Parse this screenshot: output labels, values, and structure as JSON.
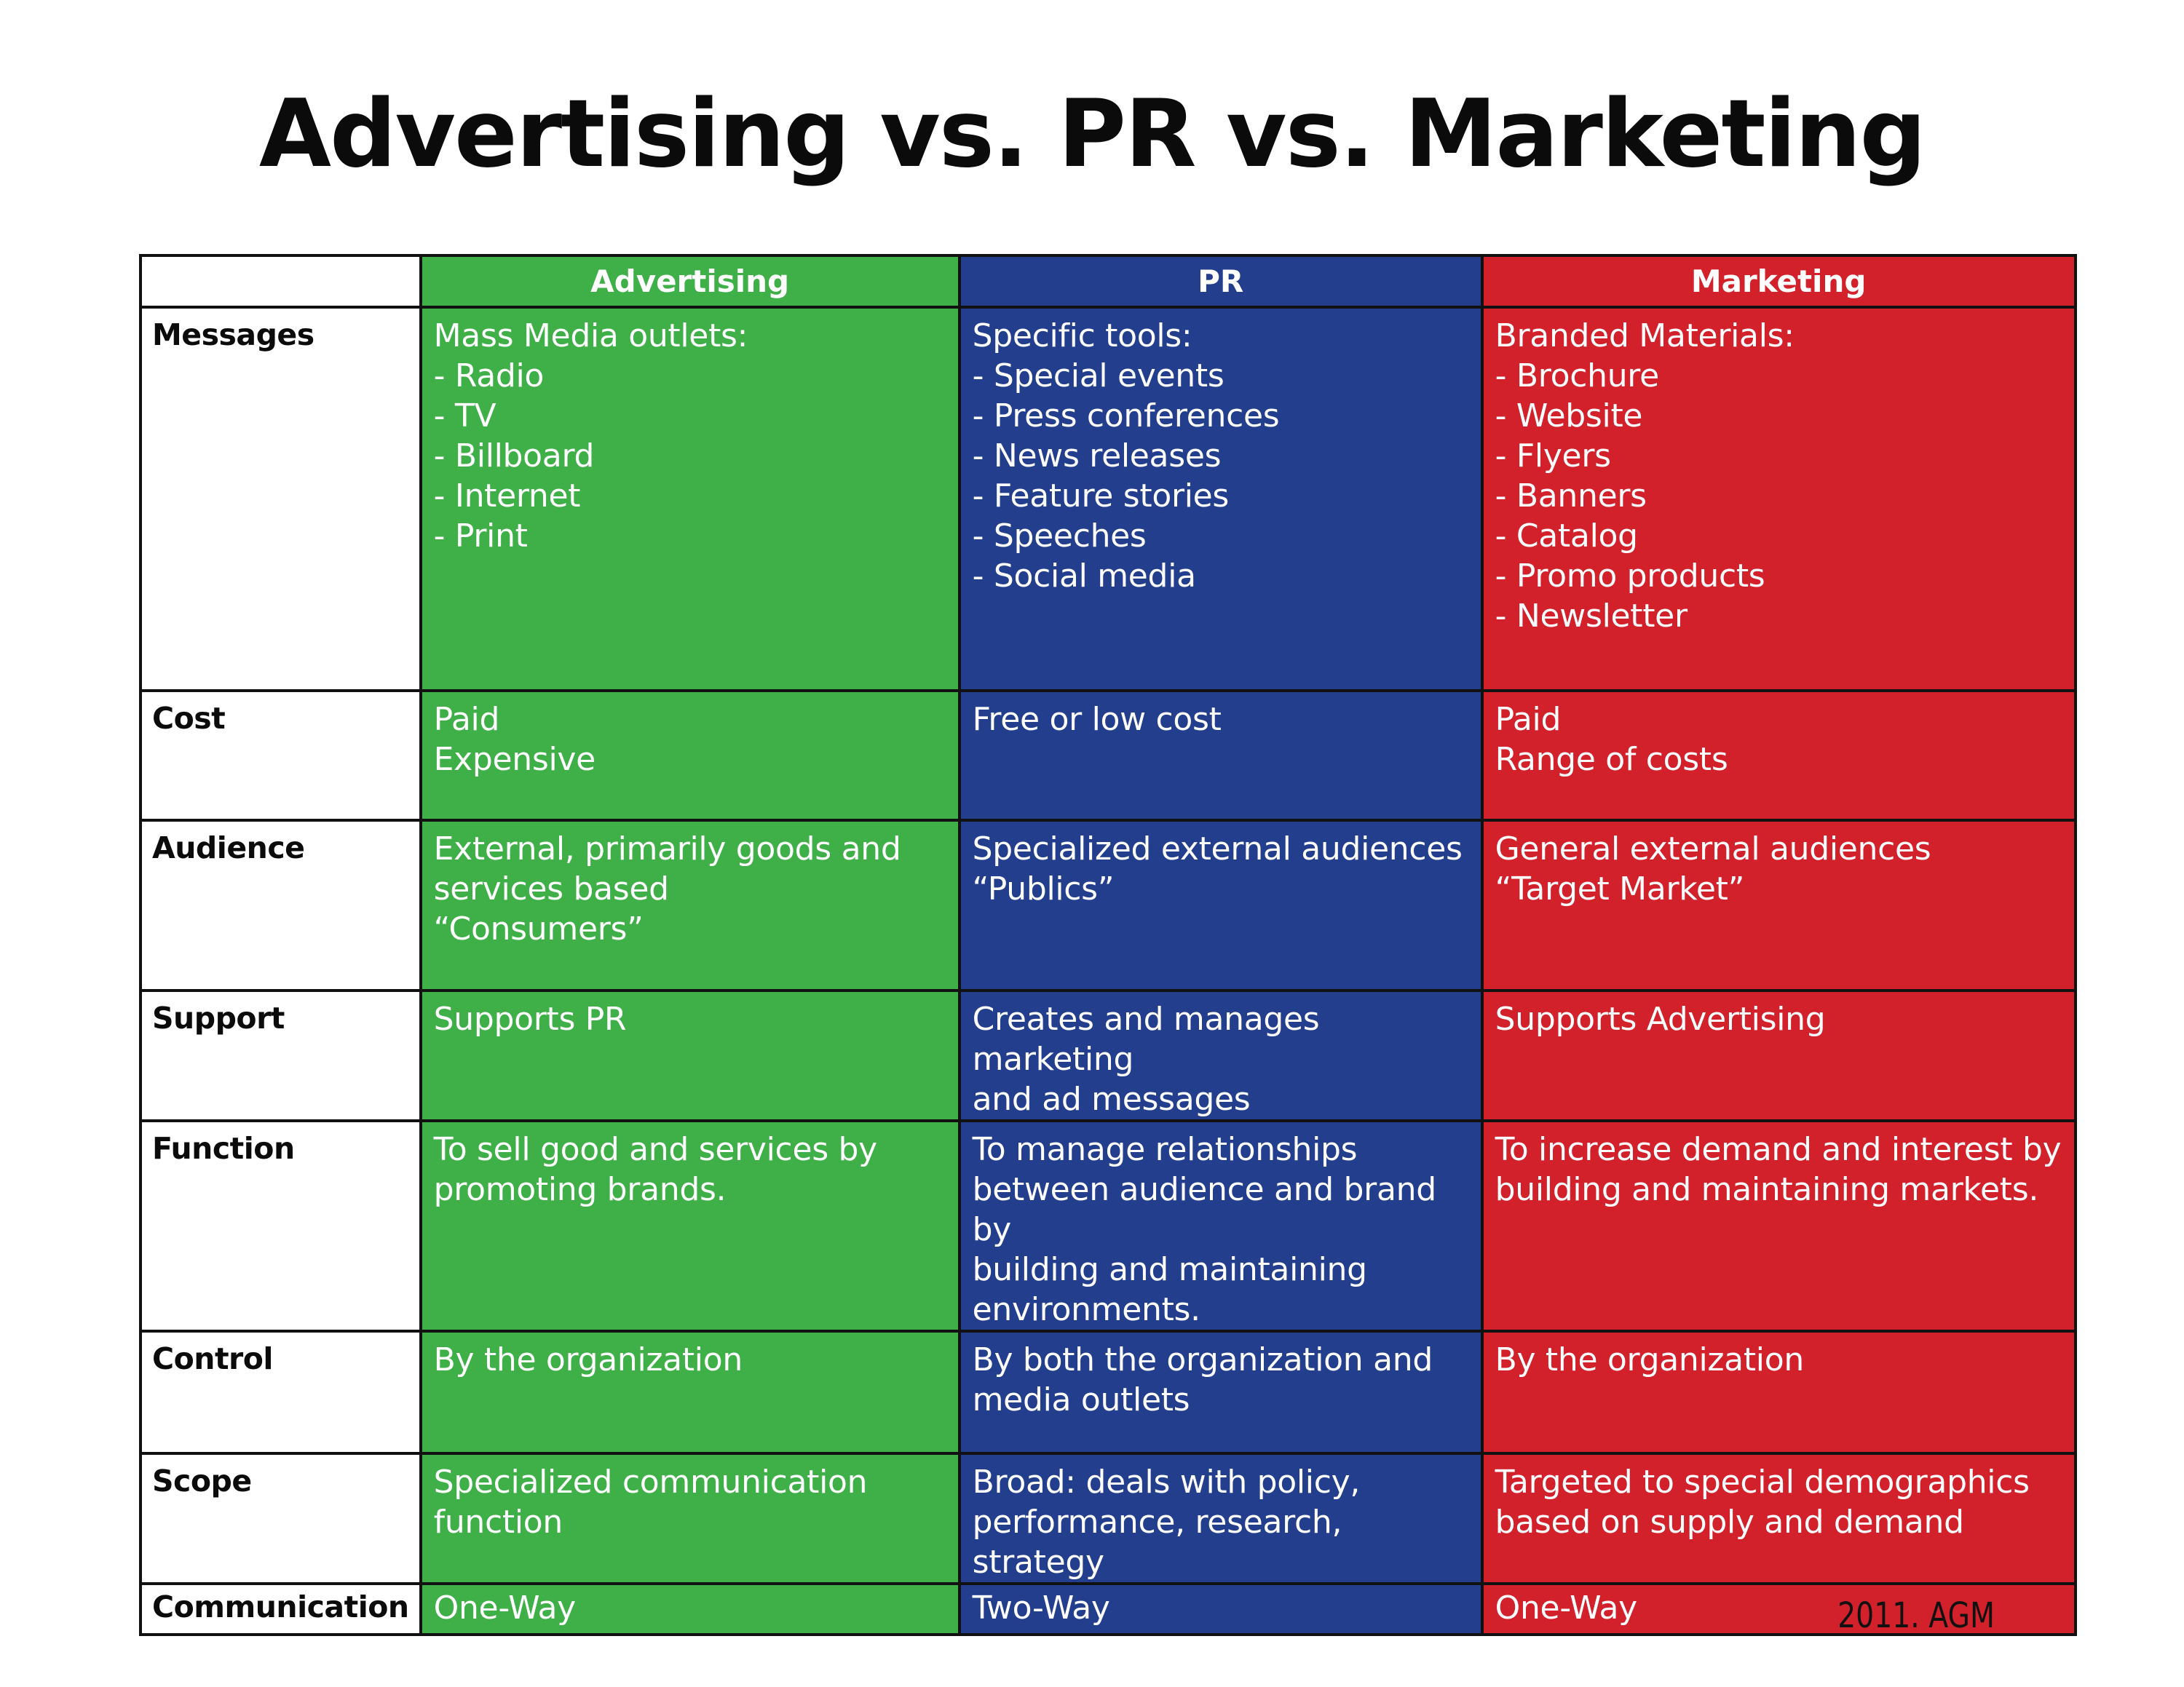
{
  "title": "Advertising vs. PR vs. Marketing",
  "colors": {
    "advertising": "#3faf48",
    "pr": "#233e8c",
    "marketing": "#d2212b",
    "border": "#111111"
  },
  "table": {
    "columns": [
      "Advertising",
      "PR",
      "Marketing"
    ],
    "rows": [
      {
        "label": "Messages",
        "cells": [
          [
            "Mass Media outlets:",
            "- Radio",
            "- TV",
            "- Billboard",
            "- Internet",
            "- Print"
          ],
          [
            "Specific tools:",
            "- Special events",
            "- Press conferences",
            "- News releases",
            "- Feature stories",
            "- Speeches",
            "- Social media"
          ],
          [
            "Branded Materials:",
            "- Brochure",
            "- Website",
            "- Flyers",
            "- Banners",
            "- Catalog",
            "- Promo products",
            "- Newsletter"
          ]
        ]
      },
      {
        "label": "Cost",
        "cells": [
          [
            "Paid",
            "Expensive"
          ],
          [
            "Free or low cost"
          ],
          [
            "Paid",
            "Range of costs"
          ]
        ]
      },
      {
        "label": "Audience",
        "cells": [
          [
            "External, primarily goods and",
            "services based",
            "“Consumers”"
          ],
          [
            "Specialized external audiences",
            "“Publics”"
          ],
          [
            "General external audiences",
            "“Target Market”"
          ]
        ]
      },
      {
        "label": "Support",
        "cells": [
          [
            "Supports PR"
          ],
          [
            "Creates and manages marketing",
            "and ad messages"
          ],
          [
            "Supports Advertising"
          ]
        ]
      },
      {
        "label": "Function",
        "cells": [
          [
            "To sell good and services by",
            "promoting brands."
          ],
          [
            "To manage relationships",
            "between audience and brand by",
            "building and maintaining",
            "environments."
          ],
          [
            "To increase demand and interest by",
            "building and maintaining markets."
          ]
        ]
      },
      {
        "label": "Control",
        "cells": [
          [
            "By the organization"
          ],
          [
            "By both the organization and",
            "media outlets"
          ],
          [
            "By the organization"
          ]
        ]
      },
      {
        "label": "Scope",
        "cells": [
          [
            "Specialized communication",
            "function"
          ],
          [
            "Broad: deals with policy,",
            "performance, research, strategy"
          ],
          [
            "Targeted to special demographics",
            "based on supply and demand"
          ]
        ]
      },
      {
        "label": "Communication",
        "cells": [
          [
            "One-Way"
          ],
          [
            "Two-Way"
          ],
          [
            "One-Way"
          ]
        ]
      }
    ]
  },
  "credit": "2011. AGM"
}
